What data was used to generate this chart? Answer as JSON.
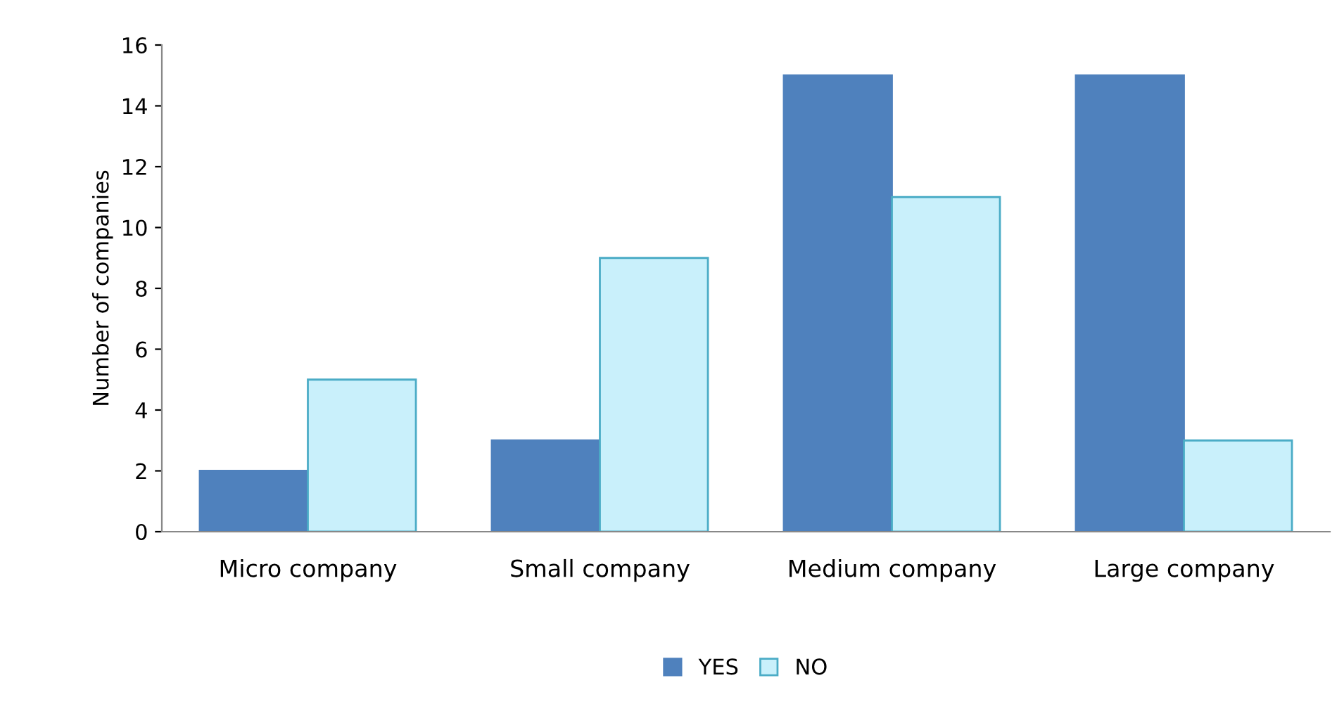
{
  "chart_data": {
    "type": "bar",
    "ylabel": "Number of companies",
    "categories": [
      "Micro company",
      "Small company",
      "Medium company",
      "Large company"
    ],
    "series": [
      {
        "name": "YES",
        "color": "#4f81bd",
        "values": [
          2,
          3,
          15,
          15
        ]
      },
      {
        "name": "NO",
        "color": "#c9f0fb",
        "values": [
          5,
          9,
          11,
          3
        ]
      }
    ],
    "ylim": [
      0,
      16
    ],
    "yticks": [
      0,
      2,
      4,
      6,
      8,
      10,
      12,
      14,
      16
    ],
    "grid": false,
    "legend": "bottom"
  }
}
